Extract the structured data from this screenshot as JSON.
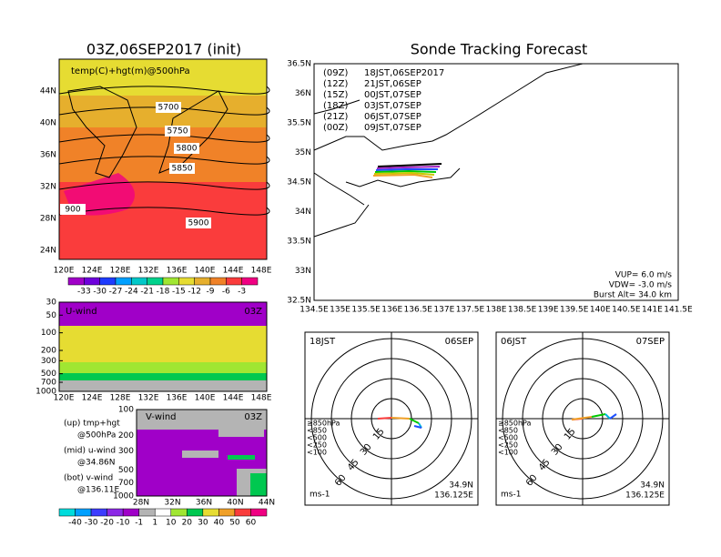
{
  "left_map": {
    "title": "03Z,06SEP2017 (init)",
    "label": "temp(C)+hgt(m)@500hPa",
    "lat_labels": [
      "44N",
      "40N",
      "36N",
      "32N",
      "28N",
      "24N"
    ],
    "lon_labels": [
      "120E",
      "124E",
      "128E",
      "132E",
      "136E",
      "140E",
      "144E",
      "148E"
    ],
    "contour_labels": [
      "5700",
      "5750",
      "5800",
      "5850",
      "900",
      "5900"
    ],
    "colorbar": {
      "labels": [
        -33,
        -30,
        -27,
        -24,
        -21,
        -18,
        -15,
        -12,
        -9,
        -6,
        -3
      ],
      "colors": [
        "#a000c8",
        "#6e00dc",
        "#1e3cff",
        "#00a0ff",
        "#00c8c8",
        "#00d28c",
        "#a0e632",
        "#e6dc32",
        "#e6af2d",
        "#f08228",
        "#fa3c3c",
        "#f00082"
      ]
    }
  },
  "u_wind": {
    "label": "U-wind",
    "time": "03Z",
    "p_labels": [
      30,
      50,
      100,
      200,
      300,
      500,
      700,
      1000
    ],
    "lon_labels": [
      "120E",
      "124E",
      "128E",
      "132E",
      "136E",
      "140E",
      "144E",
      "148E"
    ]
  },
  "v_wind": {
    "label": "V-wind",
    "time": "03Z",
    "p_labels": [
      100,
      200,
      300,
      500,
      700,
      1000
    ],
    "lat_labels": [
      "28N",
      "32N",
      "36N",
      "40N",
      "44N"
    ],
    "colorbar": {
      "labels": [
        -40,
        -30,
        -20,
        -10,
        -1,
        1,
        10,
        20,
        30,
        40,
        50,
        60
      ],
      "colors": [
        "#00dcdc",
        "#00a0ff",
        "#3c3cff",
        "#8c28e6",
        "#a000c8",
        "#b4b4b4",
        "#ffffff",
        "#a0e632",
        "#00c850",
        "#e6dc32",
        "#f0a028",
        "#fa3c3c",
        "#f00082"
      ]
    }
  },
  "notes": [
    "(up) tmp+hgt",
    "@500hPa",
    "(mid) u-wind",
    "@34.86N",
    "(bot) v-wind",
    "@136.11E"
  ],
  "track_map": {
    "title": "Sonde Tracking Forecast",
    "lat_labels": [
      "36.5N",
      "36N",
      "35.5N",
      "35N",
      "34.5N",
      "34N",
      "33.5N",
      "33N",
      "32.5N"
    ],
    "lon_labels": [
      "134.5E",
      "135E",
      "135.5E",
      "136E",
      "136.5E",
      "137E",
      "137.5E",
      "138E",
      "138.5E",
      "139E",
      "139.5E",
      "140E",
      "140.5E",
      "141E",
      "141.5E"
    ],
    "legend": [
      {
        "run": "(09Z)",
        "time": "18JST,06SEP2017",
        "color": "#000000"
      },
      {
        "run": "(12Z)",
        "time": "21JST,06SEP",
        "color": "#a020c0"
      },
      {
        "run": "(15Z)",
        "time": "00JST,07SEP",
        "color": "#1e50ff"
      },
      {
        "run": "(18Z)",
        "time": "03JST,07SEP",
        "color": "#00c800"
      },
      {
        "run": "(21Z)",
        "time": "06JST,07SEP",
        "color": "#c8c800"
      },
      {
        "run": "(00Z)",
        "time": "09JST,07SEP",
        "color": "#f0a028"
      }
    ],
    "params": [
      "VUP= 6.0 m/s",
      "VDW= -3.0 m/s",
      "Burst Alt= 34.0 km"
    ]
  },
  "polar_plots": [
    {
      "time": "18JST",
      "date": "06SEP",
      "lat": "34.9N",
      "lon": "136.125E"
    },
    {
      "time": "06JST",
      "date": "07SEP",
      "lat": "34.9N",
      "lon": "136.125E"
    }
  ],
  "polar_common": {
    "unit": "ms-1",
    "ring_labels": [
      15,
      30,
      45,
      60
    ],
    "pressure_legend": [
      {
        "label": "≥850hPa",
        "color": "#fa3c3c"
      },
      {
        "label": "<850",
        "color": "#f0a028"
      },
      {
        "label": "<500",
        "color": "#00c800"
      },
      {
        "label": "<250",
        "color": "#00b4dc"
      },
      {
        "label": "<100",
        "color": "#1e50ff"
      }
    ]
  }
}
